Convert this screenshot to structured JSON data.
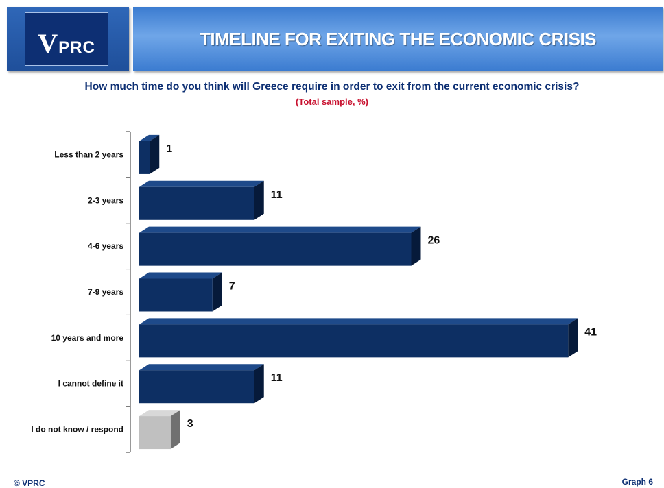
{
  "header": {
    "logo_text_v": "V",
    "logo_text_rest": "PRC",
    "title": "TIMELINE FOR EXITING THE ECONOMIC CRISIS"
  },
  "question": "How much time do you think will Greece require in order to exit from the current economic crisis?",
  "subtitle": "(Total sample, %)",
  "footer": {
    "copyright": "© VPRC",
    "graph_label": "Graph 6"
  },
  "colors": {
    "bar_main": "#0d2f63",
    "bar_main_top": "#1e4a8a",
    "bar_main_side": "#061a3a",
    "bar_gray": "#c0c0c0",
    "bar_gray_top": "#d8d8d8",
    "bar_gray_side": "#707070"
  },
  "chart_data": {
    "type": "bar",
    "orientation": "horizontal",
    "categories": [
      "Less than 2 years",
      "2-3 years",
      "4-6 years",
      "7-9 years",
      "10 years and more",
      "I cannot define it",
      "I do not know / respond"
    ],
    "values": [
      1,
      11,
      26,
      7,
      41,
      11,
      3
    ],
    "highlight": [
      false,
      false,
      false,
      false,
      false,
      false,
      true
    ],
    "xlim": [
      0,
      41
    ],
    "grid": false,
    "legend": "none"
  }
}
